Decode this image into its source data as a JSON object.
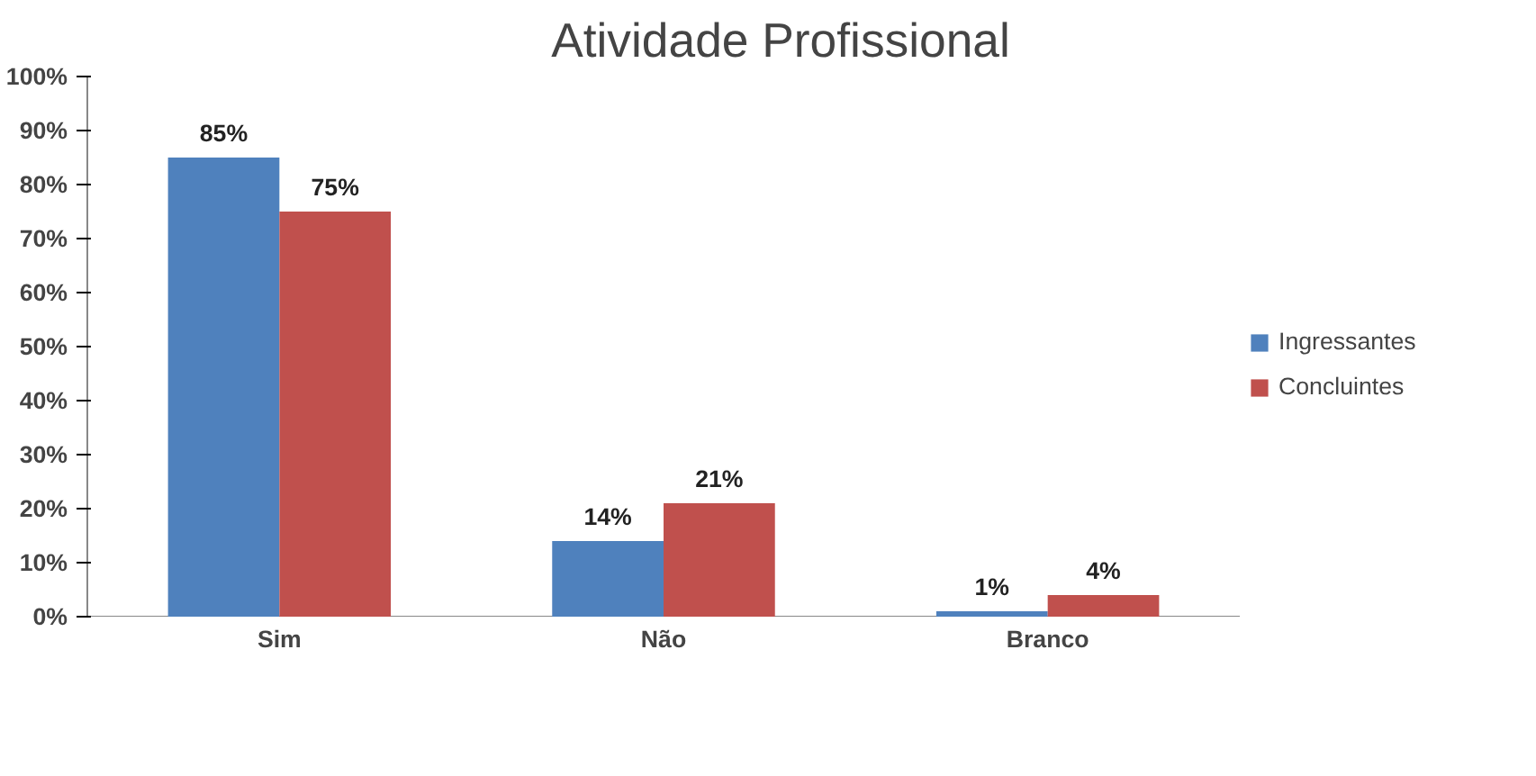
{
  "chart_data": {
    "type": "bar",
    "title": "Atividade Profissional",
    "categories": [
      "Sim",
      "Não",
      "Branco"
    ],
    "series": [
      {
        "name": "Ingressantes",
        "color": "#4f81bd",
        "values": [
          85,
          14,
          1
        ],
        "value_labels": [
          "85%",
          "14%",
          "1%"
        ]
      },
      {
        "name": "Concluintes",
        "color": "#c0504d",
        "values": [
          75,
          21,
          4
        ],
        "value_labels": [
          "75%",
          "21%",
          "4%"
        ]
      }
    ],
    "ylim": [
      0,
      100
    ],
    "yticks": [
      {
        "value": 0,
        "label": "0%"
      },
      {
        "value": 10,
        "label": "10%"
      },
      {
        "value": 20,
        "label": "20%"
      },
      {
        "value": 30,
        "label": "30%"
      },
      {
        "value": 40,
        "label": "40%"
      },
      {
        "value": 50,
        "label": "50%"
      },
      {
        "value": 60,
        "label": "60%"
      },
      {
        "value": 70,
        "label": "70%"
      },
      {
        "value": 80,
        "label": "80%"
      },
      {
        "value": 90,
        "label": "90%"
      },
      {
        "value": 100,
        "label": "100%"
      }
    ],
    "grid": false,
    "legend": "right"
  }
}
